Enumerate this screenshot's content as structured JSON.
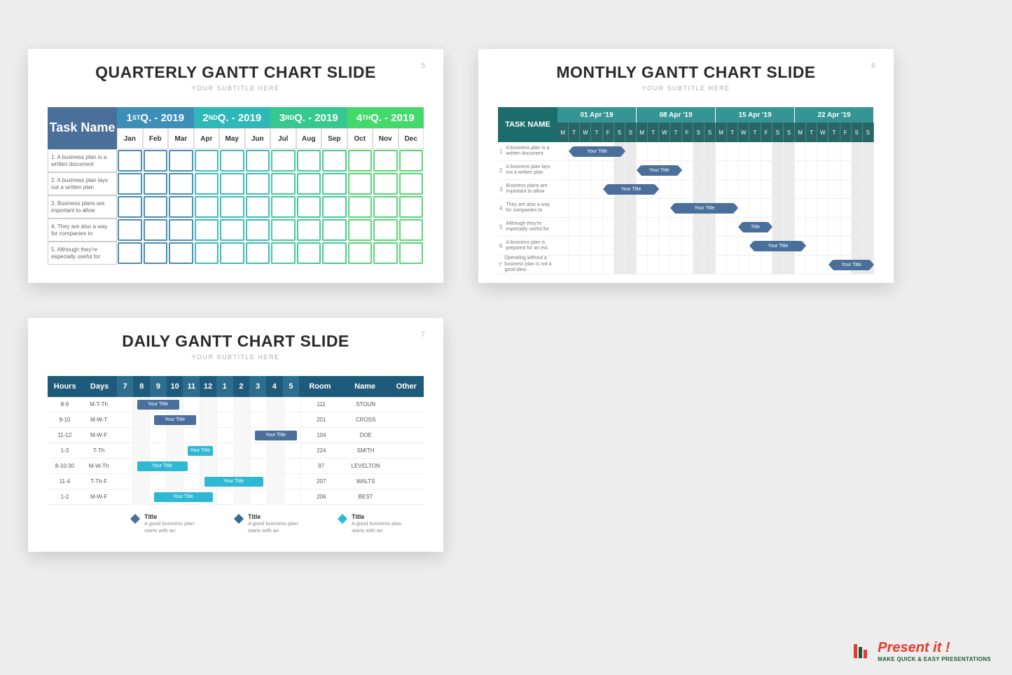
{
  "background_color": "#ededed",
  "slide5": {
    "num": "5",
    "title": "QUARTERLY GANTT CHART SLIDE",
    "subtitle": "YOUR SUBTITLE HERE",
    "task_header": "Task Name",
    "task_header_bg": "#4a6f9b",
    "quarters": [
      {
        "label_pre": "1",
        "sup": "ST",
        "label_post": " Q. - 2019",
        "bg": "#3d8fb8"
      },
      {
        "label_pre": "2",
        "sup": "ND",
        "label_post": " Q. - 2019",
        "bg": "#2eb8b8"
      },
      {
        "label_pre": "3",
        "sup": "RD",
        "label_post": " Q. - 2019",
        "bg": "#35c98f"
      },
      {
        "label_pre": "4",
        "sup": "TH",
        "label_post": " Q. - 2019",
        "bg": "#44d96a"
      }
    ],
    "months": [
      "Jan",
      "Feb",
      "Mar",
      "Apr",
      "May",
      "Jun",
      "Jul",
      "Aug",
      "Sep",
      "Oct",
      "Nov",
      "Dec"
    ],
    "cell_border_colors": [
      "#4a8db3",
      "#4a8db3",
      "#4a8db3",
      "#3bbdb8",
      "#3bbdb8",
      "#3bbdb8",
      "#42cc94",
      "#42cc94",
      "#42cc94",
      "#56d874",
      "#56d874",
      "#56d874"
    ],
    "tasks": [
      "1. A business plan is a written document",
      "2. A business plan lays out a written plan",
      "3. Business plans are important to allow",
      "4. They are also a way for companies to",
      "5. Although they're especially useful for"
    ]
  },
  "slide6": {
    "num": "6",
    "title": "MONTHLY GANTT CHART SLIDE",
    "subtitle": "YOUR SUBTITLE HERE",
    "task_header": "TASK NAME",
    "task_header_bg": "#1e6d6d",
    "week_bg": "#359494",
    "day_bg": "#2a6666",
    "bar_color": "#4a6f9b",
    "weeks": [
      "01 Apr '19",
      "08 Apr '19",
      "15 Apr '19",
      "22 Apr '19"
    ],
    "days": [
      "M",
      "T",
      "W",
      "T",
      "F",
      "S",
      "S"
    ],
    "weekend_indices": [
      5,
      6
    ],
    "tasks": [
      {
        "num": "1",
        "text": "A business plan is a written document"
      },
      {
        "num": "2",
        "text": "A business plan lays out a written plan"
      },
      {
        "num": "3",
        "text": "Business plans are important to allow"
      },
      {
        "num": "4",
        "text": "They are also a way for companies to"
      },
      {
        "num": "5",
        "text": "Although they're especially useful for"
      },
      {
        "num": "6",
        "text": "A business plan is prepared for an est."
      },
      {
        "num": "7",
        "text": "Operating without a business plan is not a good idea."
      }
    ],
    "bars": [
      {
        "row": 0,
        "start": 1,
        "span": 5,
        "label": "Your Title"
      },
      {
        "row": 1,
        "start": 7,
        "span": 4,
        "label": "Your Title"
      },
      {
        "row": 2,
        "start": 4,
        "span": 5,
        "label": "Your Title"
      },
      {
        "row": 3,
        "start": 10,
        "span": 6,
        "label": "Your Title"
      },
      {
        "row": 4,
        "start": 16,
        "span": 3,
        "label": "Title"
      },
      {
        "row": 5,
        "start": 17,
        "span": 5,
        "label": "Your Title"
      },
      {
        "row": 6,
        "start": 24,
        "span": 4,
        "label": "Your Title"
      }
    ]
  },
  "slide7": {
    "num": "7",
    "title": "DAILY GANTT CHART SLIDE",
    "subtitle": "YOUR SUBTITLE HERE",
    "header_bg": "#1e5a7a",
    "header_alt_bg": "#2d6e8e",
    "columns": {
      "hours": "Hours",
      "days": "Days",
      "room": "Room",
      "name": "Name",
      "other": "Other"
    },
    "hours": [
      "7",
      "8",
      "9",
      "10",
      "11",
      "12",
      "1",
      "2",
      "3",
      "4",
      "5"
    ],
    "rows": [
      {
        "hours": "8-9",
        "days": "M-T-Th",
        "room": "111",
        "name": "STOUN",
        "other": "",
        "bar": {
          "start": 1,
          "span": 3,
          "label": "Your Title",
          "color": "#4a6f9b"
        }
      },
      {
        "hours": "9-10",
        "days": "M-W-T",
        "room": "201",
        "name": "CROSS",
        "other": "",
        "bar": {
          "start": 2,
          "span": 3,
          "label": "Your Title",
          "color": "#4a6f9b"
        }
      },
      {
        "hours": "11-12",
        "days": "M-W-F",
        "room": "104",
        "name": "DOE",
        "other": "",
        "bar": {
          "start": 8,
          "span": 3,
          "label": "Your Title",
          "color": "#4a6f9b"
        }
      },
      {
        "hours": "1-3",
        "days": "T-Th",
        "room": "224",
        "name": "SMITH",
        "other": "",
        "bar": {
          "start": 4,
          "span": 2,
          "label": "Your Title",
          "color": "#2eb8d4"
        }
      },
      {
        "hours": "8-10:30",
        "days": "M-W-Th",
        "room": "97",
        "name": "LEVELTON",
        "other": "",
        "bar": {
          "start": 1,
          "span": 3.5,
          "label": "Your Title",
          "color": "#2eb8d4"
        }
      },
      {
        "hours": "11-4",
        "days": "T-Th-F",
        "room": "207",
        "name": "WALTS",
        "other": "",
        "bar": {
          "start": 5,
          "span": 4,
          "label": "Your Title",
          "color": "#2eb8d4"
        }
      },
      {
        "hours": "1-2",
        "days": "M-W-F",
        "room": "206",
        "name": "BEST",
        "other": "",
        "bar": {
          "start": 2,
          "span": 4,
          "label": "Your Title",
          "color": "#2eb8d4"
        }
      }
    ],
    "legend": [
      {
        "color": "#4a6f9b",
        "title": "Title",
        "text": "A good business plan starts with an"
      },
      {
        "color": "#2d6e8e",
        "title": "Title",
        "text": "A good business plan starts with an"
      },
      {
        "color": "#2eb8d4",
        "title": "Title",
        "text": "A good business plan starts with an"
      }
    ]
  },
  "brand": {
    "name": "Present it !",
    "tag": "MAKE QUICK & EASY PRESENTATIONS",
    "name_color": "#e63a2e",
    "tag_color": "#1a5a3a",
    "logo_colors": [
      "#e63a2e",
      "#1a5a3a"
    ]
  }
}
